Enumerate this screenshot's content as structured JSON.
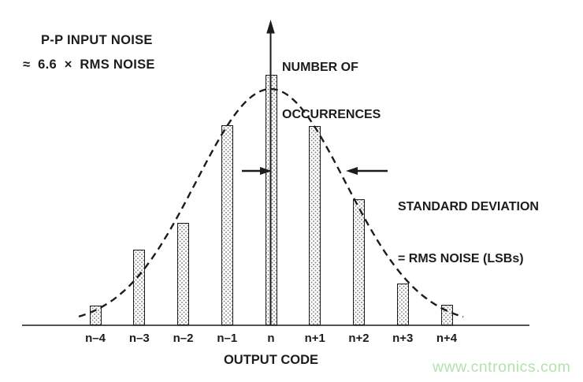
{
  "colors": {
    "ink": "#1c1c1c",
    "bar_dot": "#8e8e8e",
    "watermark": "#b3e2ae"
  },
  "annotations": {
    "pp_noise": {
      "line1": "P-P INPUT NOISE",
      "line2": "≈  6.6  ×  RMS NOISE"
    },
    "y_axis_label": {
      "line1": "NUMBER OF",
      "line2": "OCCURRENCES"
    },
    "std_dev": {
      "line1": "STANDARD DEVIATION",
      "line2": "= RMS NOISE (LSBs)"
    }
  },
  "watermark_text": "www.cntronics.com",
  "chart_data": {
    "type": "bar",
    "xlabel": "OUTPUT CODE",
    "ylabel": "NUMBER OF OCCURRENCES",
    "categories": [
      "n–4",
      "n–3",
      "n–2",
      "n–1",
      "n",
      "n+1",
      "n+2",
      "n+3",
      "n+4"
    ],
    "values": [
      25,
      96,
      130,
      254,
      318,
      253,
      160,
      53,
      26
    ],
    "y_axis_numeric": false,
    "values_unit": "relative bar heights in px; chart shows no numeric y scale",
    "grid": false,
    "legend": "none",
    "overlay_curve": {
      "shape": "gaussian",
      "style": "dashed",
      "center_category": "n",
      "sigma_codes": 1.7,
      "peak_height": 300,
      "annotation": "STANDARD DEVIATION = RMS NOISE (LSBs)"
    }
  }
}
